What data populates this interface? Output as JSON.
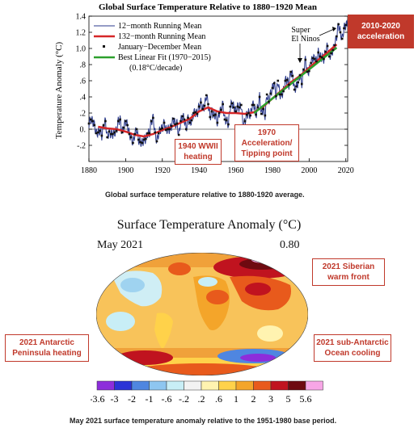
{
  "chart_data": [
    {
      "type": "line",
      "title": "Global Surface Temperature Relative to 1880−1920 Mean",
      "ylabel": "Temperature Anomaly (°C)",
      "xlabel": "",
      "xlim": [
        1880,
        2021
      ],
      "ylim": [
        -0.4,
        1.4
      ],
      "x_ticks": [
        "1880",
        "1900",
        "1920",
        "1940",
        "1960",
        "1980",
        "2000",
        "2020"
      ],
      "y_ticks": [
        "-.2",
        "0.",
        ".2",
        ".4",
        ".6",
        ".8",
        "1.0",
        "1.2",
        "1.4"
      ],
      "legend_position": "top-left",
      "legend": {
        "running12": "12−month Running Mean",
        "running132": "132−month Running Mean",
        "annual": "January−December Mean",
        "fit": "Best Linear Fit (1970−2015)",
        "fit_rate": "(0.18°C/decade)"
      },
      "series": [
        {
          "name": "January−December Mean",
          "color": "#111111",
          "x": [
            1880,
            1881,
            1882,
            1883,
            1884,
            1885,
            1886,
            1887,
            1888,
            1889,
            1890,
            1891,
            1892,
            1893,
            1894,
            1895,
            1896,
            1897,
            1898,
            1899,
            1900,
            1901,
            1902,
            1903,
            1904,
            1905,
            1906,
            1907,
            1908,
            1909,
            1910,
            1911,
            1912,
            1913,
            1914,
            1915,
            1916,
            1917,
            1918,
            1919,
            1920,
            1921,
            1922,
            1923,
            1924,
            1925,
            1926,
            1927,
            1928,
            1929,
            1930,
            1931,
            1932,
            1933,
            1934,
            1935,
            1936,
            1937,
            1938,
            1939,
            1940,
            1941,
            1942,
            1943,
            1944,
            1945,
            1946,
            1947,
            1948,
            1949,
            1950,
            1951,
            1952,
            1953,
            1954,
            1955,
            1956,
            1957,
            1958,
            1959,
            1960,
            1961,
            1962,
            1963,
            1964,
            1965,
            1966,
            1967,
            1968,
            1969,
            1970,
            1971,
            1972,
            1973,
            1974,
            1975,
            1976,
            1977,
            1978,
            1979,
            1980,
            1981,
            1982,
            1983,
            1984,
            1985,
            1986,
            1987,
            1988,
            1989,
            1990,
            1991,
            1992,
            1993,
            1994,
            1995,
            1996,
            1997,
            1998,
            1999,
            2000,
            2001,
            2002,
            2003,
            2004,
            2005,
            2006,
            2007,
            2008,
            2009,
            2010,
            2011,
            2012,
            2013,
            2014,
            2015,
            2016,
            2017,
            2018,
            2019,
            2020
          ],
          "values": [
            0.07,
            0.12,
            0.1,
            0.05,
            -0.05,
            -0.04,
            -0.02,
            -0.08,
            0.05,
            0.1,
            -0.1,
            -0.03,
            -0.06,
            -0.06,
            -0.04,
            -0.02,
            0.1,
            0.12,
            -0.04,
            0.02,
            0.1,
            0.05,
            -0.06,
            -0.1,
            -0.17,
            -0.06,
            0.0,
            -0.13,
            -0.16,
            -0.17,
            -0.13,
            -0.12,
            -0.05,
            -0.05,
            0.1,
            0.14,
            -0.04,
            -0.15,
            -0.05,
            0.0,
            0.01,
            0.08,
            -0.01,
            0.0,
            0.0,
            0.04,
            0.13,
            0.06,
            0.07,
            -0.07,
            0.1,
            0.16,
            0.12,
            0.0,
            0.14,
            0.08,
            0.11,
            0.2,
            0.21,
            0.19,
            0.28,
            0.33,
            0.25,
            0.29,
            0.42,
            0.31,
            0.15,
            0.22,
            0.17,
            0.18,
            0.08,
            0.2,
            0.24,
            0.31,
            0.12,
            0.11,
            0.06,
            0.28,
            0.32,
            0.27,
            0.22,
            0.28,
            0.27,
            0.3,
            0.02,
            0.1,
            0.18,
            0.2,
            0.17,
            0.3,
            0.3,
            0.18,
            0.27,
            0.4,
            0.19,
            0.25,
            0.17,
            0.43,
            0.34,
            0.44,
            0.51,
            0.57,
            0.41,
            0.6,
            0.43,
            0.43,
            0.47,
            0.6,
            0.61,
            0.55,
            0.71,
            0.66,
            0.49,
            0.53,
            0.58,
            0.67,
            0.56,
            0.74,
            0.86,
            0.71,
            0.72,
            0.82,
            0.88,
            0.87,
            0.84,
            0.95,
            0.9,
            0.89,
            0.87,
            0.96,
            1.03,
            0.9,
            0.94,
            0.98,
            1.04,
            1.15,
            1.3,
            1.2,
            1.12,
            1.25,
            1.29
          ]
        },
        {
          "name": "132−month Running Mean",
          "color": "#d62728",
          "x": [
            1885,
            1890,
            1895,
            1900,
            1905,
            1910,
            1915,
            1920,
            1925,
            1930,
            1935,
            1940,
            1945,
            1950,
            1955,
            1960,
            1965,
            1970,
            1975,
            1980,
            1985,
            1990,
            1995,
            2000,
            2005,
            2010,
            2015
          ],
          "values": [
            0.03,
            0.01,
            0.0,
            -0.03,
            -0.07,
            -0.09,
            -0.06,
            -0.01,
            0.03,
            0.08,
            0.13,
            0.22,
            0.27,
            0.22,
            0.2,
            0.2,
            0.19,
            0.21,
            0.28,
            0.38,
            0.48,
            0.58,
            0.66,
            0.76,
            0.86,
            0.95,
            1.05
          ]
        },
        {
          "name": "Best Linear Fit (1970−2015)",
          "color": "#2ca02c",
          "x": [
            1970,
            2015
          ],
          "values": [
            0.2,
            1.01
          ]
        }
      ]
    },
    {
      "type": "heatmap",
      "title": "Surface Temperature Anomaly (°C)",
      "period": "May 2021",
      "mean_anomaly": "0.80",
      "scale_labels": [
        "-3.6",
        "-3",
        "-2",
        "-1",
        "-.6",
        "-.2",
        ".2",
        ".6",
        "1",
        "2",
        "3",
        "5",
        "5.6"
      ],
      "scale_colors": [
        "#8d2ddb",
        "#2b33d6",
        "#4f86e0",
        "#8ec6f0",
        "#c8eef6",
        "#f2f2f2",
        "#fff3b0",
        "#ffd24a",
        "#f4a52a",
        "#e85a1c",
        "#c0131f",
        "#6e0a10",
        "#f7a6e6"
      ]
    }
  ],
  "annotations": {
    "acceleration_2010": "2010-2020 acceleration",
    "super_el_ninos": "Super El Ninos",
    "wwii": "1940 WWII heating",
    "tipping_point": "1970 Acceleration/ Tipping point",
    "siberian": "2021 Siberian warm front",
    "antarctic_peninsula": "2021 Antarctic Peninsula heating",
    "sub_antarctic": "2021 sub-Antarctic Ocean cooling"
  },
  "captions": {
    "top": "Global surface temperature relative to 1880-1920 average.",
    "bottom": "May 2021 surface temperature anomaly relative to the 1951-1980 base period."
  }
}
